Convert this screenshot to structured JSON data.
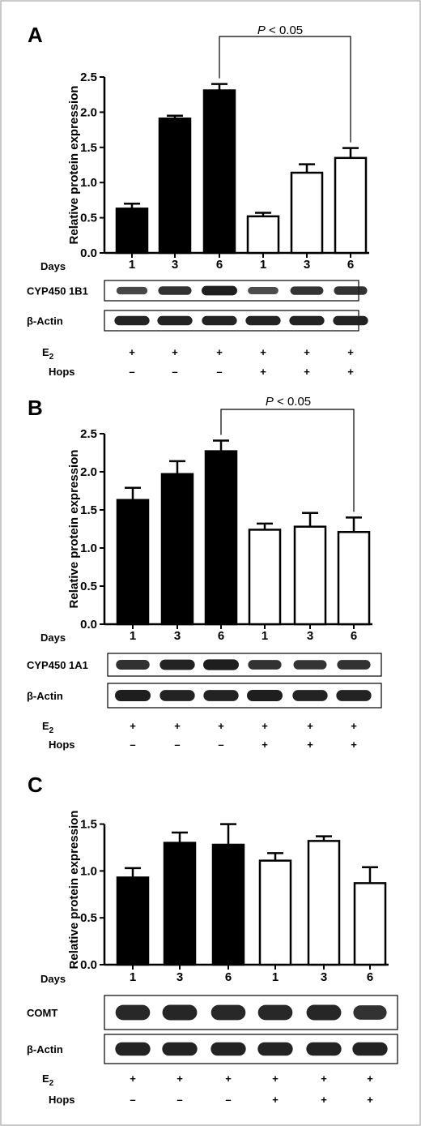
{
  "figure": {
    "frame_color": "#b8b8b8",
    "filled_bar_color": "#000000",
    "open_bar_color": "#ffffff",
    "blot_background": "#e4e4e4",
    "band_color": "#1e1e1e"
  },
  "chart_data": [
    {
      "panel": "A",
      "type": "bar",
      "ylabel": "Relative protein expression",
      "xlabel": "Days",
      "categories": [
        "1",
        "3",
        "6",
        "1",
        "3",
        "6"
      ],
      "values": [
        0.63,
        1.91,
        2.31,
        0.52,
        1.14,
        1.35
      ],
      "errors": [
        0.07,
        0.04,
        0.09,
        0.05,
        0.12,
        0.14
      ],
      "bar_fill": [
        "filled",
        "filled",
        "filled",
        "open",
        "open",
        "open"
      ],
      "ylim": [
        0,
        2.5
      ],
      "yticks": [
        "0.0",
        "0.5",
        "1.0",
        "1.5",
        "2.0",
        "2.5"
      ],
      "grid": false,
      "annotation": {
        "p_italic": "P",
        "p_rest": " < 0.05",
        "from_index": 2,
        "to_index": 5
      },
      "blots": [
        {
          "label": "CYP450 1B1",
          "style": "gray-bg",
          "intensity": [
            0.6,
            0.8,
            1.0,
            0.55,
            0.78,
            0.8
          ]
        },
        {
          "label": "β-Actin",
          "style": "white-bg",
          "intensity": [
            0.95,
            0.95,
            0.95,
            0.95,
            0.95,
            0.95
          ]
        }
      ],
      "treatments": {
        "e2_label_base": "E",
        "e2_label_sub": "2",
        "e2": [
          "+",
          "+",
          "+",
          "+",
          "+",
          "+"
        ],
        "hops_label": "Hops",
        "hops": [
          "–",
          "–",
          "–",
          "+",
          "+",
          "+"
        ]
      }
    },
    {
      "panel": "B",
      "type": "bar",
      "ylabel": "Relative protein expression",
      "xlabel": "Days",
      "categories": [
        "1",
        "3",
        "6",
        "1",
        "3",
        "6"
      ],
      "values": [
        1.63,
        1.97,
        2.27,
        1.24,
        1.28,
        1.21
      ],
      "errors": [
        0.16,
        0.17,
        0.14,
        0.08,
        0.18,
        0.19
      ],
      "bar_fill": [
        "filled",
        "filled",
        "filled",
        "open",
        "open",
        "open"
      ],
      "ylim": [
        0,
        2.5
      ],
      "yticks": [
        "0.0",
        "0.5",
        "1.0",
        "1.5",
        "2.0",
        "2.5"
      ],
      "grid": false,
      "annotation": {
        "p_italic": "P",
        "p_rest": " < 0.05",
        "from_index": 2,
        "to_index": 5
      },
      "blots": [
        {
          "label": "CYP450 1A1",
          "style": "white-bg",
          "intensity": [
            0.82,
            0.95,
            1.0,
            0.8,
            0.78,
            0.8
          ]
        },
        {
          "label": "β-Actin",
          "style": "white-bg",
          "intensity": [
            1.0,
            0.95,
            0.95,
            1.0,
            0.95,
            0.95
          ]
        }
      ],
      "treatments": {
        "e2_label_base": "E",
        "e2_label_sub": "2",
        "e2": [
          "+",
          "+",
          "+",
          "+",
          "+",
          "+"
        ],
        "hops_label": "Hops",
        "hops": [
          "–",
          "–",
          "–",
          "+",
          "+",
          "+"
        ]
      }
    },
    {
      "panel": "C",
      "type": "bar",
      "ylabel": "Relative protein expression",
      "xlabel": "Days",
      "categories": [
        "1",
        "3",
        "6",
        "1",
        "3",
        "6"
      ],
      "values": [
        0.93,
        1.3,
        1.28,
        1.11,
        1.32,
        0.87
      ],
      "errors": [
        0.1,
        0.11,
        0.22,
        0.08,
        0.05,
        0.17
      ],
      "bar_fill": [
        "filled",
        "filled",
        "filled",
        "open",
        "open",
        "open"
      ],
      "ylim": [
        0,
        1.6
      ],
      "yticks": [
        "0.0",
        "0.5",
        "1.0",
        "1.5"
      ],
      "grid": false,
      "blots": [
        {
          "label": "COMT",
          "style": "gray-bg",
          "intensity": [
            0.9,
            0.92,
            0.9,
            0.9,
            0.92,
            0.8
          ]
        },
        {
          "label": "β-Actin",
          "style": "white-bg",
          "intensity": [
            0.95,
            0.95,
            0.95,
            0.95,
            0.95,
            0.95
          ]
        }
      ],
      "treatments": {
        "e2_label_base": "E",
        "e2_label_sub": "2",
        "e2": [
          "+",
          "+",
          "+",
          "+",
          "+",
          "+"
        ],
        "hops_label": "Hops",
        "hops": [
          "–",
          "–",
          "–",
          "+",
          "+",
          "+"
        ]
      }
    }
  ]
}
